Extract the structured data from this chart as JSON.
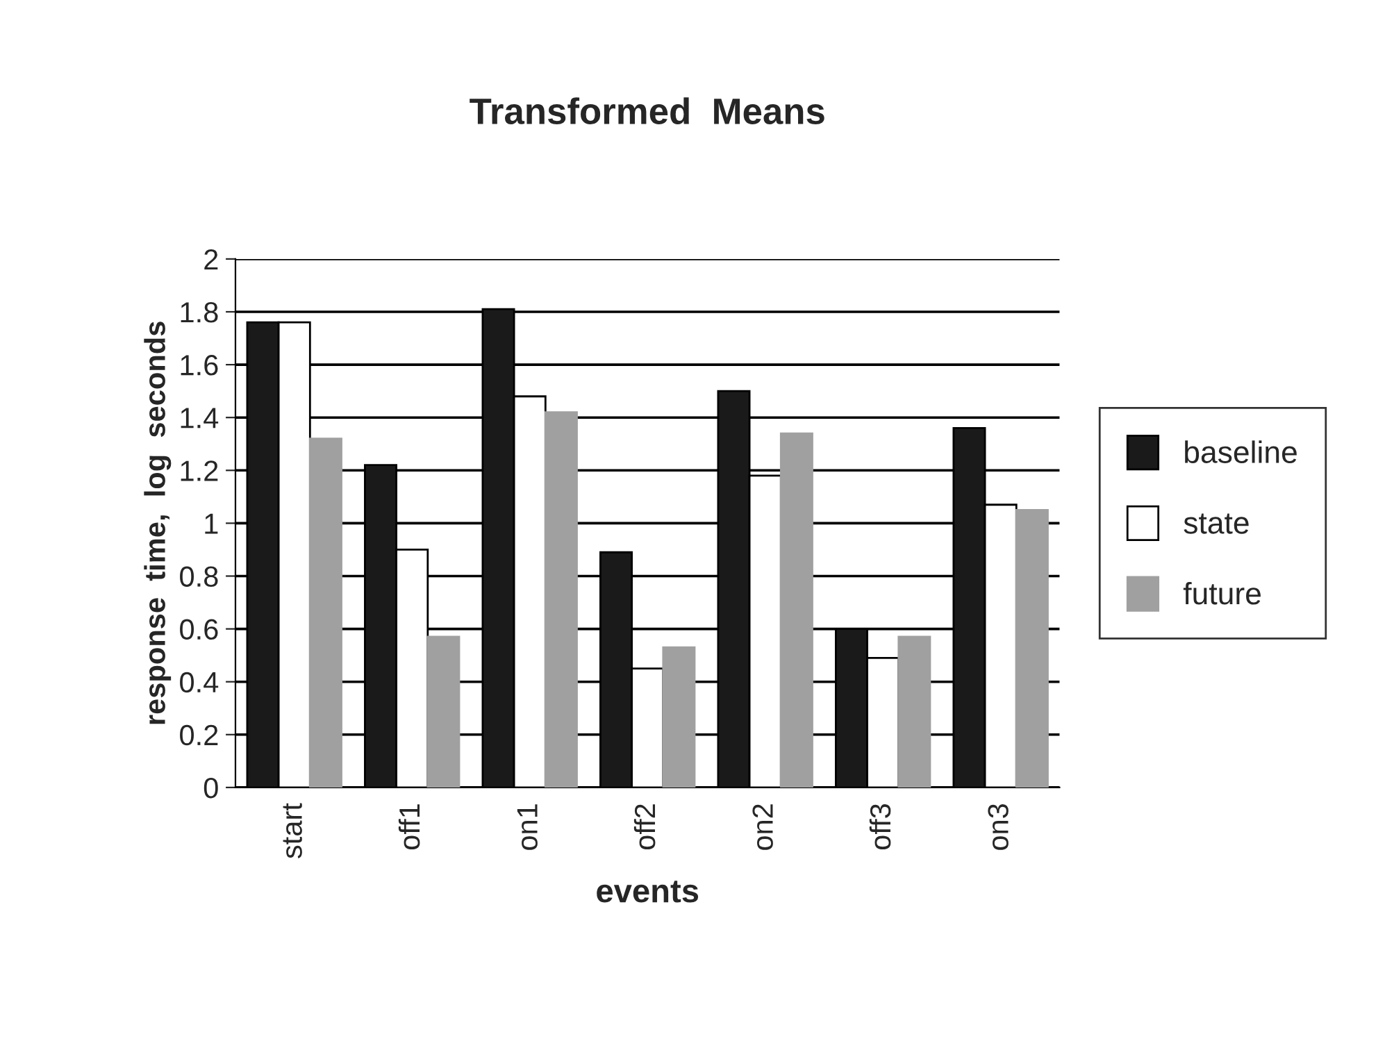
{
  "chart_data": {
    "type": "bar",
    "title": "Transformed  Means",
    "xlabel": "events",
    "ylabel": "response  time,  log  seconds",
    "categories": [
      "start",
      "off1",
      "on1",
      "off2",
      "on2",
      "off3",
      "on3"
    ],
    "series": [
      {
        "name": "baseline",
        "color": "#1a1a1a",
        "values": [
          1.76,
          1.22,
          1.81,
          0.89,
          1.5,
          0.6,
          1.36
        ]
      },
      {
        "name": "state",
        "color": "#ffffff",
        "values": [
          1.76,
          0.9,
          1.48,
          0.45,
          1.18,
          0.49,
          1.07
        ]
      },
      {
        "name": "future",
        "color": "#a0a0a0",
        "values": [
          1.32,
          0.57,
          1.42,
          0.53,
          1.34,
          0.57,
          1.05
        ]
      }
    ],
    "ylim": [
      0,
      2
    ],
    "yticks": [
      0,
      {
        "value": 0.2,
        "label": "0.2"
      },
      {
        "value": 0.4,
        "label": "0.4"
      },
      {
        "value": 0.6,
        "label": "0.6"
      },
      {
        "value": 0.8,
        "label": "0.8"
      },
      1,
      {
        "value": 1.2,
        "label": "1.2"
      },
      {
        "value": 1.4,
        "label": "1.4"
      },
      {
        "value": 1.6,
        "label": "1.6"
      },
      {
        "value": 1.8,
        "label": "1.8"
      },
      2
    ],
    "grid": "y",
    "legend": "right"
  }
}
